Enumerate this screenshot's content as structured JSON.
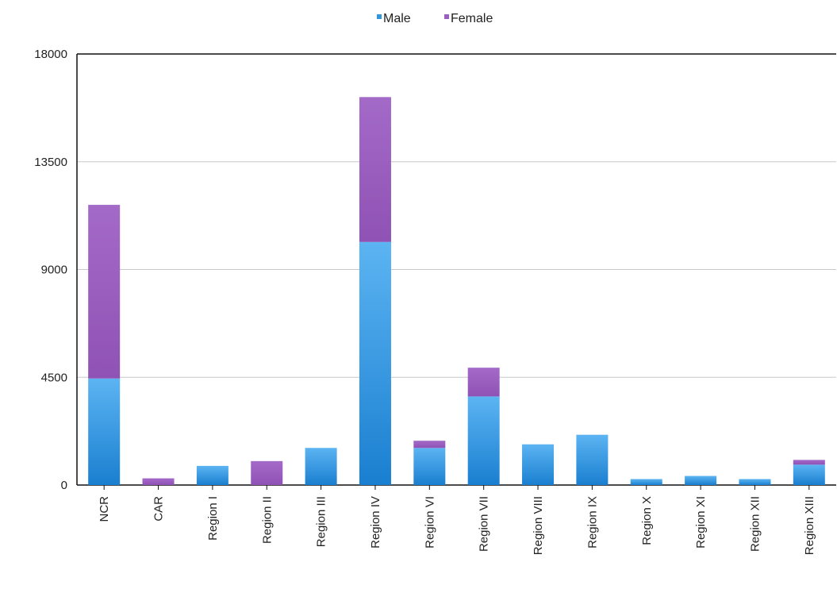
{
  "chart_data": {
    "type": "bar",
    "stacked": true,
    "categories": [
      "NCR",
      "CAR",
      "Region I",
      "Region II",
      "Region III",
      "Region IV",
      "Region VI",
      "Region VII",
      "Region VIII",
      "Region IX",
      "Region X",
      "Region XI",
      "Region XII",
      "Region XIII"
    ],
    "series": [
      {
        "name": "Male",
        "color": "#2f97e0",
        "values": [
          4450,
          0,
          800,
          0,
          1550,
          10150,
          1550,
          3700,
          1700,
          2100,
          250,
          380,
          250,
          850
        ]
      },
      {
        "name": "Female",
        "color": "#9b5fc0",
        "values": [
          7250,
          280,
          0,
          1000,
          0,
          6050,
          300,
          1200,
          0,
          0,
          0,
          0,
          0,
          200
        ]
      }
    ],
    "yticks": [
      "0",
      "4500",
      "9000",
      "13500",
      "18000"
    ],
    "ylim": [
      0,
      18000
    ],
    "grid": true,
    "legend_position": "top-center",
    "title": "",
    "xlabel": "",
    "ylabel": ""
  }
}
